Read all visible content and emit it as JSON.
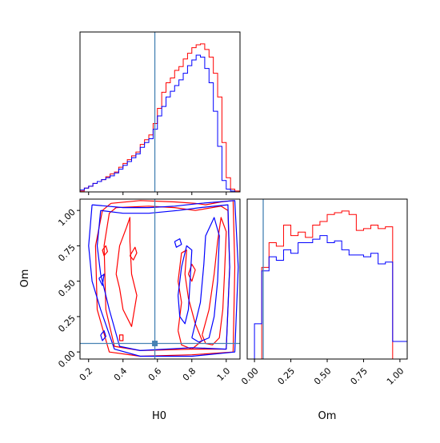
{
  "chart_data": {
    "type": "corner",
    "parameters": [
      "H0",
      "Om"
    ],
    "axis_labels": {
      "x_left": "H0",
      "y_left": "Om",
      "x_right": "Om"
    },
    "truth": {
      "H0": 0.585,
      "Om": 0.06
    },
    "colors": {
      "series_a": "#ff0000",
      "series_b": "#0000ff",
      "truth": "#4682b4",
      "axes": "#000000"
    },
    "panels": {
      "hist_H0": {
        "xlim": [
          0.15,
          1.08
        ],
        "xticks": [
          0.2,
          0.4,
          0.6,
          0.8,
          1.0
        ],
        "bin_edges": [
          0.15,
          0.175,
          0.2,
          0.225,
          0.25,
          0.275,
          0.3,
          0.325,
          0.35,
          0.375,
          0.4,
          0.425,
          0.45,
          0.475,
          0.5,
          0.525,
          0.55,
          0.575,
          0.6,
          0.625,
          0.65,
          0.675,
          0.7,
          0.725,
          0.75,
          0.775,
          0.8,
          0.825,
          0.85,
          0.875,
          0.9,
          0.925,
          0.95,
          0.975,
          1.0,
          1.025,
          1.05,
          1.075
        ],
        "series": [
          {
            "color": "red",
            "values": [
              0.1,
              0.4,
              0.6,
              0.9,
              1.1,
              1.3,
              1.6,
              1.9,
              2.1,
              2.6,
              3.0,
              3.4,
              3.8,
              4.2,
              5.0,
              5.5,
              6.0,
              7.2,
              8.8,
              10.5,
              11.5,
              12.0,
              12.8,
              13.2,
              14.0,
              14.6,
              15.2,
              15.5,
              15.6,
              15.0,
              14.2,
              12.5,
              10.0,
              5.2,
              1.5,
              0.3,
              0.1
            ]
          },
          {
            "color": "blue",
            "values": [
              0.2,
              0.4,
              0.6,
              0.9,
              1.1,
              1.3,
              1.5,
              1.7,
              2.0,
              2.4,
              2.8,
              3.2,
              3.6,
              4.0,
              4.7,
              5.2,
              5.6,
              6.6,
              8.0,
              9.0,
              10.0,
              10.6,
              11.2,
              11.8,
              12.5,
              13.3,
              13.9,
              14.4,
              14.2,
              13.0,
              11.5,
              8.5,
              4.8,
              1.2,
              0.3,
              0.1,
              0.0
            ]
          }
        ]
      },
      "hist_Om": {
        "xlim": [
          -0.05,
          1.05
        ],
        "xticks": [
          0.0,
          0.25,
          0.5,
          0.75,
          1.0
        ],
        "xticklabels": [
          "0.00",
          "0.25",
          "0.50",
          "0.75",
          "1.00"
        ],
        "bin_edges": [
          -0.05,
          0.0,
          0.05,
          0.1,
          0.15,
          0.2,
          0.25,
          0.3,
          0.35,
          0.4,
          0.45,
          0.5,
          0.55,
          0.6,
          0.65,
          0.7,
          0.75,
          0.8,
          0.85,
          0.9,
          0.95,
          1.0,
          1.05
        ],
        "series": [
          {
            "color": "red",
            "values": [
              0.0,
              0.0,
              5.2,
              6.6,
              6.4,
              7.6,
              7.0,
              7.2,
              6.9,
              7.6,
              7.8,
              8.2,
              8.3,
              8.4,
              8.2,
              7.3,
              7.4,
              7.6,
              7.4,
              7.5,
              0.0,
              0.0
            ]
          },
          {
            "color": "blue",
            "values": [
              0.0,
              2.0,
              5.0,
              5.8,
              5.6,
              6.2,
              6.0,
              6.6,
              6.6,
              6.8,
              7.0,
              6.6,
              6.7,
              6.2,
              5.9,
              5.9,
              5.8,
              6.0,
              5.4,
              5.5,
              1.0,
              1.0
            ]
          }
        ]
      },
      "contour_H0_Om": {
        "xlim": [
          0.15,
          1.08
        ],
        "ylim": [
          -0.05,
          1.08
        ],
        "xticks": [
          0.2,
          0.4,
          0.6,
          0.8,
          1.0
        ],
        "yticks": [
          0.0,
          0.25,
          0.5,
          0.75,
          1.0
        ],
        "yticklabels": [
          "0.00",
          "0.25",
          "0.50",
          "0.75",
          "1.00"
        ],
        "series": [
          {
            "color": "red",
            "contours": [
              [
                [
                  0.33,
                  1.05
                ],
                [
                  0.5,
                  1.07
                ],
                [
                  0.7,
                  1.06
                ],
                [
                  0.82,
                  1.05
                ],
                [
                  0.88,
                  1.04
                ],
                [
                  0.97,
                  1.06
                ],
                [
                  1.04,
                  1.07
                ],
                [
                  1.05,
                  0.6
                ],
                [
                  1.04,
                  0.0
                ],
                [
                  0.8,
                  -0.02
                ],
                [
                  0.5,
                  -0.03
                ],
                [
                  0.32,
                  0.0
                ],
                [
                  0.25,
                  0.3
                ],
                [
                  0.24,
                  0.75
                ],
                [
                  0.28,
                  1.0
                ],
                [
                  0.33,
                  1.05
                ]
              ],
              [
                [
                  0.36,
                  1.02
                ],
                [
                  0.55,
                  1.03
                ],
                [
                  0.7,
                  1.02
                ],
                [
                  0.82,
                  1.0
                ],
                [
                  0.97,
                  1.03
                ],
                [
                  1.01,
                  1.0
                ],
                [
                  1.02,
                  0.6
                ],
                [
                  1.0,
                  0.02
                ],
                [
                  0.8,
                  0.02
                ],
                [
                  0.5,
                  0.01
                ],
                [
                  0.35,
                  0.04
                ],
                [
                  0.3,
                  0.3
                ],
                [
                  0.29,
                  0.75
                ],
                [
                  0.32,
                  0.98
                ],
                [
                  0.36,
                  1.02
                ]
              ],
              [
                [
                  0.36,
                  0.55
                ],
                [
                  0.38,
                  0.75
                ],
                [
                  0.42,
                  0.88
                ],
                [
                  0.44,
                  0.95
                ],
                [
                  0.44,
                  0.78
                ],
                [
                  0.45,
                  0.55
                ],
                [
                  0.48,
                  0.4
                ],
                [
                  0.45,
                  0.18
                ],
                [
                  0.4,
                  0.3
                ],
                [
                  0.38,
                  0.45
                ],
                [
                  0.36,
                  0.55
                ]
              ],
              [
                [
                  0.72,
                  0.15
                ],
                [
                  0.74,
                  0.35
                ],
                [
                  0.72,
                  0.5
                ],
                [
                  0.74,
                  0.7
                ],
                [
                  0.77,
                  0.72
                ],
                [
                  0.76,
                  0.55
                ],
                [
                  0.78,
                  0.38
                ],
                [
                  0.82,
                  0.2
                ],
                [
                  0.86,
                  0.08
                ],
                [
                  0.8,
                  0.02
                ],
                [
                  0.74,
                  0.05
                ],
                [
                  0.72,
                  0.15
                ]
              ],
              [
                [
                  0.86,
                  0.12
                ],
                [
                  0.9,
                  0.3
                ],
                [
                  0.93,
                  0.55
                ],
                [
                  0.95,
                  0.78
                ],
                [
                  0.97,
                  0.95
                ],
                [
                  1.0,
                  0.85
                ],
                [
                  0.99,
                  0.55
                ],
                [
                  0.98,
                  0.3
                ],
                [
                  0.96,
                  0.1
                ],
                [
                  0.92,
                  0.05
                ],
                [
                  0.88,
                  0.06
                ],
                [
                  0.86,
                  0.12
                ]
              ],
              [
                [
                  0.38,
                  0.08
                ],
                [
                  0.4,
                  0.08
                ],
                [
                  0.4,
                  0.12
                ],
                [
                  0.38,
                  0.12
                ],
                [
                  0.38,
                  0.08
                ]
              ],
              [
                [
                  0.44,
                  0.68
                ],
                [
                  0.47,
                  0.74
                ],
                [
                  0.48,
                  0.7
                ],
                [
                  0.46,
                  0.65
                ],
                [
                  0.44,
                  0.68
                ]
              ],
              [
                [
                  0.28,
                  0.72
                ],
                [
                  0.3,
                  0.75
                ],
                [
                  0.31,
                  0.71
                ],
                [
                  0.29,
                  0.68
                ],
                [
                  0.28,
                  0.72
                ]
              ],
              [
                [
                  0.78,
                  0.55
                ],
                [
                  0.8,
                  0.62
                ],
                [
                  0.82,
                  0.58
                ],
                [
                  0.8,
                  0.5
                ],
                [
                  0.78,
                  0.55
                ]
              ]
            ]
          },
          {
            "color": "blue",
            "contours": [
              [
                [
                  0.22,
                  1.04
                ],
                [
                  0.4,
                  1.02
                ],
                [
                  0.55,
                  1.02
                ],
                [
                  0.7,
                  1.03
                ],
                [
                  0.85,
                  1.05
                ],
                [
                  1.05,
                  1.07
                ],
                [
                  1.07,
                  0.6
                ],
                [
                  1.05,
                  0.0
                ],
                [
                  0.8,
                  -0.03
                ],
                [
                  0.5,
                  -0.03
                ],
                [
                  0.35,
                  0.02
                ],
                [
                  0.27,
                  0.3
                ],
                [
                  0.22,
                  0.5
                ],
                [
                  0.2,
                  0.75
                ],
                [
                  0.22,
                  1.04
                ]
              ],
              [
                [
                  0.27,
                  1.0
                ],
                [
                  0.4,
                  0.98
                ],
                [
                  0.55,
                  0.98
                ],
                [
                  0.72,
                  1.0
                ],
                [
                  0.85,
                  1.02
                ],
                [
                  1.01,
                  1.04
                ],
                [
                  1.02,
                  0.6
                ],
                [
                  1.0,
                  0.02
                ],
                [
                  0.8,
                  0.03
                ],
                [
                  0.5,
                  0.01
                ],
                [
                  0.38,
                  0.04
                ],
                [
                  0.32,
                  0.3
                ],
                [
                  0.27,
                  0.55
                ],
                [
                  0.25,
                  0.75
                ],
                [
                  0.27,
                  1.0
                ]
              ],
              [
                [
                  0.8,
                  0.1
                ],
                [
                  0.85,
                  0.35
                ],
                [
                  0.87,
                  0.62
                ],
                [
                  0.88,
                  0.82
                ],
                [
                  0.93,
                  0.95
                ],
                [
                  0.96,
                  0.82
                ],
                [
                  0.95,
                  0.5
                ],
                [
                  0.93,
                  0.25
                ],
                [
                  0.9,
                  0.1
                ],
                [
                  0.84,
                  0.07
                ],
                [
                  0.8,
                  0.1
                ]
              ],
              [
                [
                  0.72,
                  0.4
                ],
                [
                  0.74,
                  0.6
                ],
                [
                  0.77,
                  0.75
                ],
                [
                  0.8,
                  0.72
                ],
                [
                  0.79,
                  0.5
                ],
                [
                  0.78,
                  0.3
                ],
                [
                  0.76,
                  0.2
                ],
                [
                  0.73,
                  0.25
                ],
                [
                  0.72,
                  0.4
                ]
              ],
              [
                [
                  0.26,
                  0.52
                ],
                [
                  0.29,
                  0.55
                ],
                [
                  0.28,
                  0.47
                ],
                [
                  0.26,
                  0.52
                ]
              ],
              [
                [
                  0.27,
                  0.12
                ],
                [
                  0.29,
                  0.15
                ],
                [
                  0.3,
                  0.11
                ],
                [
                  0.28,
                  0.08
                ],
                [
                  0.27,
                  0.12
                ]
              ],
              [
                [
                  0.7,
                  0.78
                ],
                [
                  0.73,
                  0.8
                ],
                [
                  0.74,
                  0.76
                ],
                [
                  0.71,
                  0.74
                ],
                [
                  0.7,
                  0.78
                ]
              ]
            ]
          }
        ]
      }
    }
  }
}
